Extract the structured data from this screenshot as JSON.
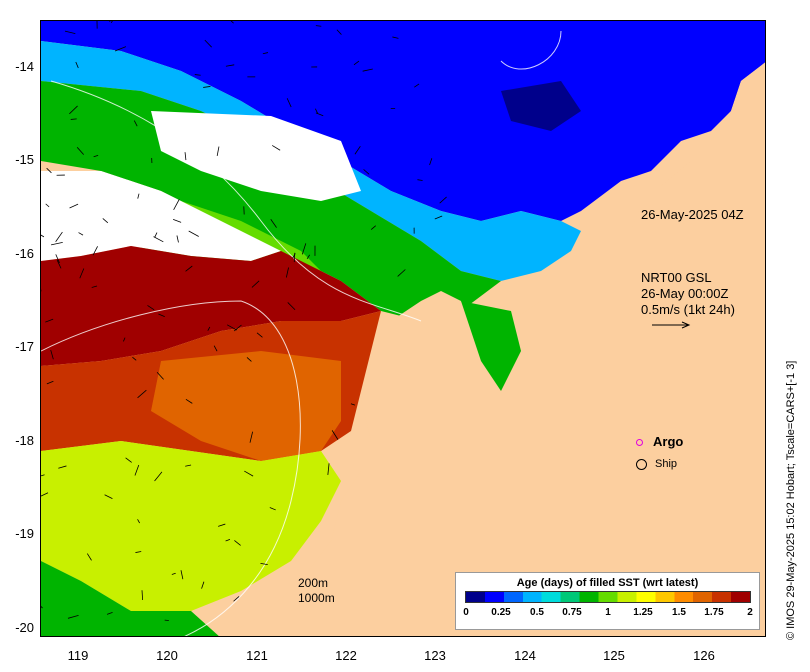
{
  "map": {
    "lat_labels": [
      "-14",
      "-15",
      "-16",
      "-17",
      "-18",
      "-19",
      "-20"
    ],
    "lon_labels": [
      "119",
      "120",
      "121",
      "122",
      "123",
      "124",
      "125",
      "126"
    ],
    "annotation_time": "26-May-2025 04Z",
    "current_info": [
      "NRT00 GSL",
      "26-May 00:00Z",
      "0.5m/s (1kt 24h)"
    ],
    "scale_bar": [
      "200m",
      "1000m"
    ],
    "credit": "© IMOS 29-May-2025 15:02 Hobart; Tscale=CARS+[-1 3]",
    "colors": {
      "land": "#fccf9f",
      "nodata": "#ffffff"
    }
  },
  "legend": {
    "argo_label": "Argo",
    "ship_label": "Ship"
  },
  "colorbar": {
    "title": "Age (days) of filled SST (wrt latest)",
    "ticks": [
      "0",
      "0.25",
      "0.5",
      "0.75",
      "1",
      "1.25",
      "1.5",
      "1.75",
      "2"
    ],
    "range": [
      0,
      2
    ],
    "colors": [
      "#00008b",
      "#0000ff",
      "#0066ff",
      "#00b4ff",
      "#00dcdc",
      "#00c878",
      "#00b400",
      "#64dc00",
      "#c8f000",
      "#ffff00",
      "#ffc800",
      "#ff8c00",
      "#e06400",
      "#c83200",
      "#a00000"
    ]
  }
}
